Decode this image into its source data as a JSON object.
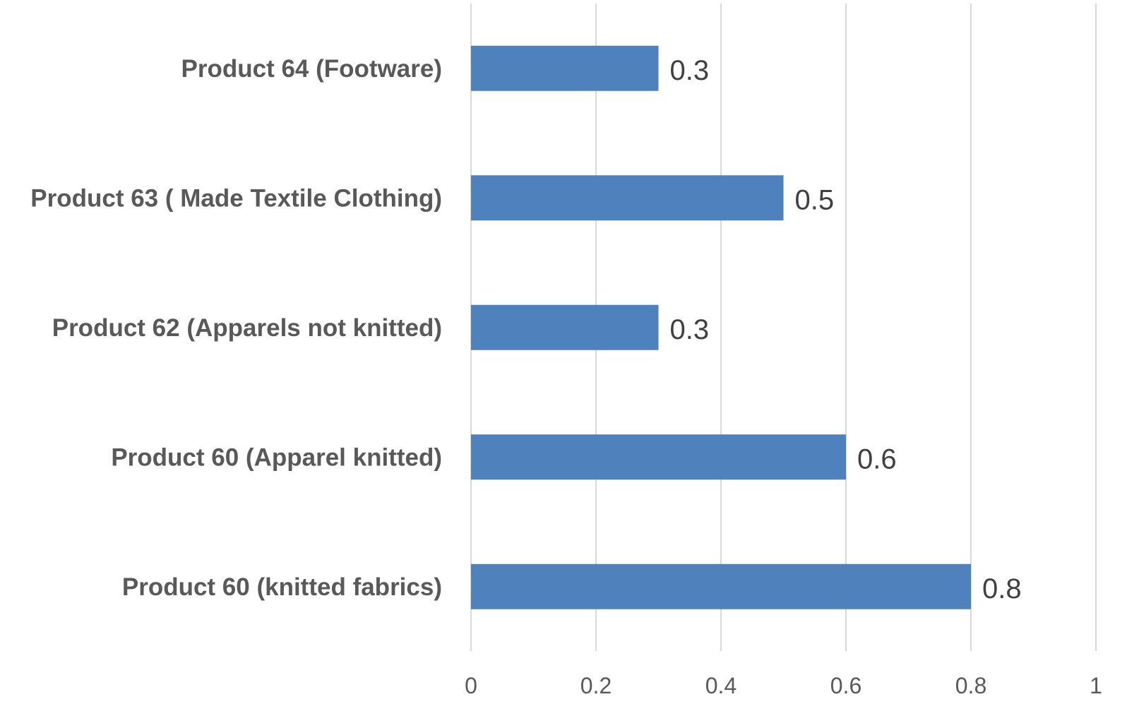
{
  "chart_data": {
    "type": "bar",
    "orientation": "horizontal",
    "title": "",
    "xlabel": "",
    "ylabel": "",
    "categories": [
      "Product 64 (Footware)",
      "Product 63 ( Made Textile Clothing)",
      "Product 62  (Apparels not knitted)",
      "Product 60 (Apparel knitted)",
      "Product 60  (knitted fabrics)"
    ],
    "values": [
      0.3,
      0.5,
      0.3,
      0.6,
      0.8
    ],
    "data_labels": [
      "0.3",
      "0.5",
      "0.3",
      "0.6",
      "0.8"
    ],
    "xlim": [
      0,
      1
    ],
    "x_ticks": [
      0,
      0.2,
      0.4,
      0.6,
      0.8,
      1
    ],
    "x_tick_labels": [
      "0",
      "0.2",
      "0.4",
      "0.6",
      "0.8",
      "1"
    ],
    "grid": "vertical",
    "legend": "none",
    "colors": {
      "bar": "#4F81BD",
      "grid": "#D9D9D9",
      "category_text": "#595959",
      "tick_text": "#595959",
      "data_label_text": "#404040"
    }
  }
}
